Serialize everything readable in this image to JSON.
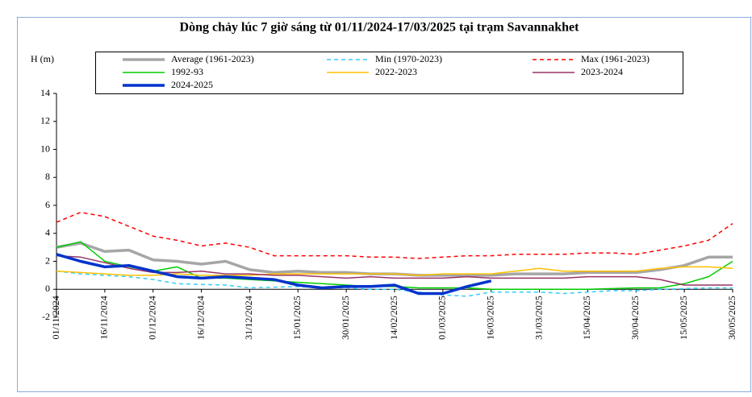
{
  "chart_data": {
    "type": "line",
    "title": "Dòng chảy lúc 7 giờ sáng từ 01/11/2024-17/03/2025 tại trạm Savannakhet",
    "y_label": "H (m)",
    "categories": [
      "01/11/2024",
      null,
      "16/11/2024",
      null,
      "01/12/2024",
      null,
      "16/12/2024",
      null,
      "31/12/2024",
      null,
      "15/01/2025",
      null,
      "30/01/2025",
      null,
      "14/02/2025",
      null,
      "01/03/2025",
      null,
      "16/03/2025",
      null,
      "31/03/2025",
      null,
      "15/04/2025",
      null,
      "30/04/2025",
      null,
      "15/05/2025",
      null,
      "30/05/2025"
    ],
    "ylim": [
      -2,
      14
    ],
    "yticks": [
      -2,
      0,
      2,
      4,
      6,
      8,
      10,
      12,
      14
    ],
    "grid": false,
    "series": [
      {
        "name": "Average (1961-2023)",
        "color": "#a6a6a6",
        "linestyle": "thick",
        "values": [
          3.0,
          3.3,
          2.7,
          2.8,
          2.1,
          2.0,
          1.8,
          2.0,
          1.4,
          1.2,
          1.3,
          1.2,
          1.2,
          1.1,
          1.1,
          1.0,
          1.0,
          1.0,
          1.0,
          1.1,
          1.1,
          1.1,
          1.2,
          1.2,
          1.2,
          1.4,
          1.7,
          2.3,
          2.3
        ]
      },
      {
        "name": "Min (1970-2023)",
        "color": "#33ccff",
        "linestyle": "dashed",
        "values": [
          1.3,
          1.1,
          1.0,
          0.9,
          0.7,
          0.4,
          0.35,
          0.3,
          0.1,
          0.15,
          0.2,
          0.1,
          0.1,
          0.0,
          0.0,
          -0.2,
          -0.4,
          -0.5,
          -0.2,
          -0.2,
          -0.2,
          -0.3,
          -0.2,
          -0.1,
          -0.1,
          0.0,
          0.05,
          0.1,
          0.1
        ]
      },
      {
        "name": "Max (1961-2023)",
        "color": "#ff0000",
        "linestyle": "dashed",
        "values": [
          4.8,
          5.5,
          5.2,
          4.5,
          3.8,
          3.5,
          3.1,
          3.3,
          3.0,
          2.4,
          2.4,
          2.4,
          2.4,
          2.3,
          2.3,
          2.2,
          2.3,
          2.4,
          2.4,
          2.5,
          2.5,
          2.5,
          2.6,
          2.6,
          2.5,
          2.8,
          3.1,
          3.5,
          4.7
        ]
      },
      {
        "name": "1992-93",
        "color": "#00cc00",
        "linestyle": "solid",
        "values": [
          3.0,
          3.4,
          2.0,
          1.6,
          1.3,
          1.6,
          0.8,
          0.8,
          0.7,
          0.6,
          0.5,
          0.4,
          0.3,
          0.2,
          0.2,
          0.1,
          0.1,
          0.1,
          0.0,
          0.0,
          0.0,
          0.0,
          0.0,
          0.05,
          0.1,
          0.1,
          0.4,
          0.9,
          2.0
        ]
      },
      {
        "name": "2022-2023",
        "color": "#ffc000",
        "linestyle": "solid",
        "values": [
          1.3,
          1.2,
          1.1,
          1.0,
          1.0,
          1.1,
          1.0,
          1.0,
          1.0,
          1.1,
          1.1,
          1.1,
          1.1,
          1.1,
          1.1,
          1.0,
          1.1,
          1.1,
          1.1,
          1.3,
          1.5,
          1.3,
          1.3,
          1.3,
          1.3,
          1.5,
          1.6,
          1.6,
          1.5
        ]
      },
      {
        "name": "2023-2024",
        "color": "#993366",
        "linestyle": "solid",
        "values": [
          2.4,
          2.3,
          1.9,
          1.5,
          1.2,
          1.2,
          1.3,
          1.1,
          1.1,
          1.0,
          1.0,
          0.9,
          0.8,
          0.9,
          0.8,
          0.8,
          0.8,
          0.9,
          0.8,
          0.8,
          0.8,
          0.8,
          0.9,
          0.9,
          0.9,
          0.7,
          0.3,
          0.3,
          0.3
        ]
      },
      {
        "name": "2024-2025",
        "color": "#0033cc",
        "linestyle": "thick",
        "values": [
          2.5,
          2.0,
          1.6,
          1.7,
          1.3,
          0.9,
          0.8,
          0.9,
          0.8,
          0.7,
          0.3,
          0.1,
          0.2,
          0.2,
          0.3,
          -0.3,
          -0.3,
          0.2,
          0.6,
          null,
          null,
          null,
          null,
          null,
          null,
          null,
          null,
          null,
          null
        ]
      }
    ]
  }
}
